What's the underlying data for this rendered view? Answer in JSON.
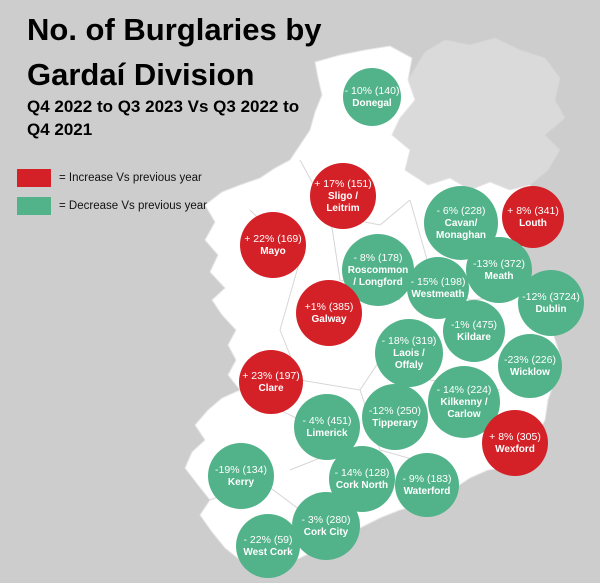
{
  "title": {
    "line1": "No. of Burglaries by",
    "line2": "Gardaí Division",
    "subtitle_line1": "Q4 2022 to Q3 2023 Vs Q3 2022 to",
    "subtitle_line2": "Q4 2021"
  },
  "legend": {
    "increase": {
      "label": "= Increase Vs previous year",
      "color": "#d42127"
    },
    "decrease": {
      "label": "= Decrease Vs previous year",
      "color": "#52b38a"
    }
  },
  "colors": {
    "background": "#cdcdcd",
    "land": "#ffffff",
    "increase": "#d42127",
    "decrease": "#52b38a"
  },
  "divisions": [
    {
      "id": "donegal",
      "change": "- 10% (140)",
      "name": "Donegal",
      "trend": "decrease"
    },
    {
      "id": "sligo-leitrim",
      "change": "+ 17% (151)",
      "name": "Sligo / Leitrim",
      "trend": "increase"
    },
    {
      "id": "mayo",
      "change": "+ 22% (169)",
      "name": "Mayo",
      "trend": "increase"
    },
    {
      "id": "roscommon-longford",
      "change": "- 8% (178)",
      "name": "Roscommon / Longford",
      "trend": "decrease"
    },
    {
      "id": "cavan-monaghan",
      "change": "- 6% (228)",
      "name": "Cavan/ Monaghan",
      "trend": "decrease"
    },
    {
      "id": "louth",
      "change": "+ 8% (341)",
      "name": "Louth",
      "trend": "increase"
    },
    {
      "id": "westmeath",
      "change": "- 15% (198)",
      "name": "Westmeath",
      "trend": "decrease"
    },
    {
      "id": "meath",
      "change": "-13% (372)",
      "name": "Meath",
      "trend": "decrease"
    },
    {
      "id": "dublin",
      "change": "-12% (3724)",
      "name": "Dublin",
      "trend": "decrease"
    },
    {
      "id": "galway",
      "change": "+1% (385)",
      "name": "Galway",
      "trend": "increase"
    },
    {
      "id": "laois-offaly",
      "change": "- 18% (319)",
      "name": "Laois / Offaly",
      "trend": "decrease"
    },
    {
      "id": "kildare",
      "change": "-1% (475)",
      "name": "Kildare",
      "trend": "decrease"
    },
    {
      "id": "wicklow",
      "change": "-23% (226)",
      "name": "Wicklow",
      "trend": "decrease"
    },
    {
      "id": "clare",
      "change": "+ 23% (197)",
      "name": "Clare",
      "trend": "increase"
    },
    {
      "id": "kilkenny-carlow",
      "change": "- 14% (224)",
      "name": "Kilkenny / Carlow",
      "trend": "decrease"
    },
    {
      "id": "tipperary",
      "change": "-12% (250)",
      "name": "Tipperary",
      "trend": "decrease"
    },
    {
      "id": "limerick",
      "change": "- 4% (451)",
      "name": "Limerick",
      "trend": "decrease"
    },
    {
      "id": "wexford",
      "change": "+ 8% (305)",
      "name": "Wexford",
      "trend": "increase"
    },
    {
      "id": "kerry",
      "change": "-19% (134)",
      "name": "Kerry",
      "trend": "decrease"
    },
    {
      "id": "cork-north",
      "change": "- 14% (128)",
      "name": "Cork North",
      "trend": "decrease"
    },
    {
      "id": "waterford",
      "change": "- 9% (183)",
      "name": "Waterford",
      "trend": "decrease"
    },
    {
      "id": "cork-city",
      "change": "- 3% (280)",
      "name": "Cork City",
      "trend": "decrease"
    },
    {
      "id": "west-cork",
      "change": "- 22% (59)",
      "name": "West Cork",
      "trend": "decrease"
    }
  ]
}
